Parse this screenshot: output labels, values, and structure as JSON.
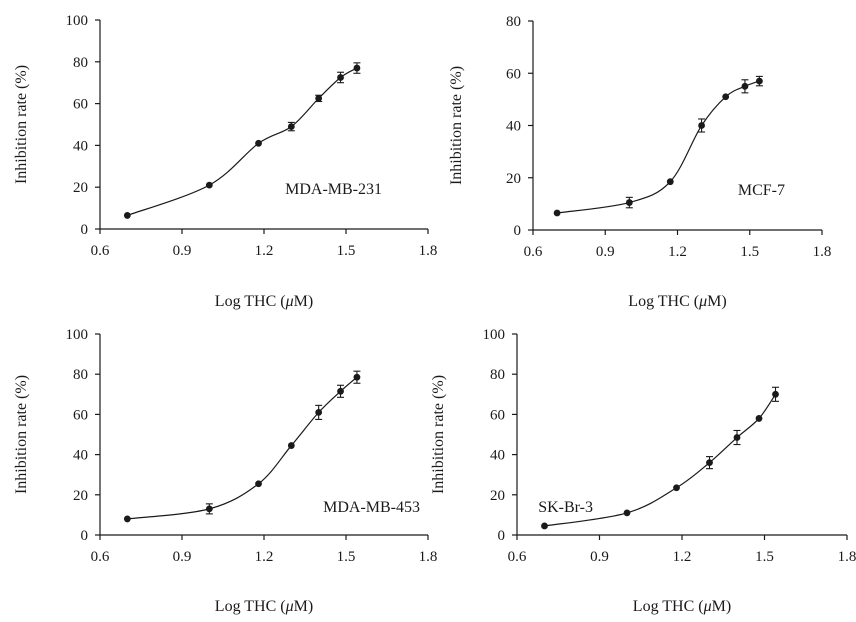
{
  "chart_data": [
    {
      "type": "line",
      "panel_label": "MDA-MB-231",
      "xlabel_prefix": "Log THC (",
      "xlabel_unit_mu": "μ",
      "xlabel_suffix": "M)",
      "ylabel": "Inhibition rate (%)",
      "xlim": [
        0.6,
        1.8
      ],
      "ylim": [
        0,
        100
      ],
      "xticks": [
        "0.6",
        "0.9",
        "1.2",
        "1.5",
        "1.8"
      ],
      "yticks": [
        "0",
        "20",
        "40",
        "60",
        "80",
        "100"
      ],
      "x": [
        0.7,
        1.0,
        1.18,
        1.3,
        1.4,
        1.48,
        1.54
      ],
      "y": [
        6.5,
        21,
        41,
        49,
        62.5,
        72.5,
        77
      ],
      "err": [
        0,
        0,
        0,
        2,
        1.5,
        2.5,
        2.5
      ]
    },
    {
      "type": "line",
      "panel_label": "MCF-7",
      "xlabel_prefix": "Log THC (",
      "xlabel_unit_mu": "μ",
      "xlabel_suffix": "M)",
      "ylabel": "Inhibition rate (%)",
      "xlim": [
        0.6,
        1.8
      ],
      "ylim": [
        0,
        80
      ],
      "xticks": [
        "0.6",
        "0.9",
        "1.2",
        "1.5",
        "1.8"
      ],
      "yticks": [
        "0",
        "20",
        "40",
        "60",
        "80"
      ],
      "x": [
        0.7,
        1.0,
        1.17,
        1.3,
        1.4,
        1.48,
        1.54
      ],
      "y": [
        6.5,
        10.5,
        18.5,
        40,
        51,
        55,
        57
      ],
      "err": [
        0,
        2,
        0,
        2.5,
        0,
        2.5,
        1.8
      ]
    },
    {
      "type": "line",
      "panel_label": "MDA-MB-453",
      "xlabel_prefix": "Log THC (",
      "xlabel_unit_mu": "μ",
      "xlabel_suffix": "M)",
      "ylabel": "Inhibition rate (%)",
      "xlim": [
        0.6,
        1.8
      ],
      "ylim": [
        0,
        100
      ],
      "xticks": [
        "0.6",
        "0.9",
        "1.2",
        "1.5",
        "1.8"
      ],
      "yticks": [
        "0",
        "20",
        "40",
        "60",
        "80",
        "100"
      ],
      "x": [
        0.7,
        1.0,
        1.18,
        1.3,
        1.4,
        1.48,
        1.54
      ],
      "y": [
        8,
        13,
        25.5,
        44.5,
        61,
        71.5,
        78.5
      ],
      "err": [
        0,
        2.5,
        0,
        0,
        3.5,
        3,
        3
      ]
    },
    {
      "type": "line",
      "panel_label": "SK-Br-3",
      "xlabel_prefix": "Log THC (",
      "xlabel_unit_mu": "μ",
      "xlabel_suffix": "M)",
      "ylabel": "Inhibition rate (%)",
      "xlim": [
        0.6,
        1.8
      ],
      "ylim": [
        0,
        100
      ],
      "xticks": [
        "0.6",
        "0.9",
        "1.2",
        "1.5",
        "1.8"
      ],
      "yticks": [
        "0",
        "20",
        "40",
        "60",
        "80",
        "100"
      ],
      "x": [
        0.7,
        1.0,
        1.18,
        1.3,
        1.4,
        1.48,
        1.54
      ],
      "y": [
        4.5,
        11,
        23.5,
        36,
        48.5,
        58,
        70
      ],
      "err": [
        0,
        0,
        0,
        3,
        3.5,
        0,
        3.5
      ]
    }
  ]
}
